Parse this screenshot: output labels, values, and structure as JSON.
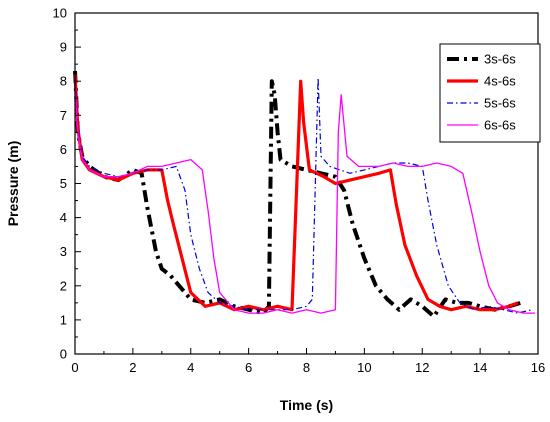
{
  "chart_data": {
    "type": "line",
    "xlabel": "Time (s)",
    "ylabel": "Pressure (m)",
    "xlim": [
      0,
      16
    ],
    "ylim": [
      0,
      10
    ],
    "xticks": [
      "0",
      "2",
      "4",
      "6",
      "8",
      "10",
      "12",
      "14",
      "16"
    ],
    "yticks": [
      "0",
      "1",
      "2",
      "3",
      "4",
      "5",
      "6",
      "7",
      "8",
      "9",
      "10"
    ],
    "grid": false,
    "legend_position": "top-right",
    "series": [
      {
        "name": "3s-6s",
        "color": "#000000",
        "style": "dash-dot-thick",
        "points": [
          [
            0.0,
            8.3
          ],
          [
            0.1,
            6.5
          ],
          [
            0.25,
            5.8
          ],
          [
            0.5,
            5.5
          ],
          [
            1.0,
            5.2
          ],
          [
            1.5,
            5.1
          ],
          [
            2.0,
            5.4
          ],
          [
            2.3,
            5.3
          ],
          [
            2.5,
            4.3
          ],
          [
            2.8,
            3.0
          ],
          [
            3.0,
            2.5
          ],
          [
            3.3,
            2.3
          ],
          [
            3.6,
            2.0
          ],
          [
            4.0,
            1.6
          ],
          [
            4.5,
            1.5
          ],
          [
            5.0,
            1.6
          ],
          [
            5.5,
            1.4
          ],
          [
            6.0,
            1.3
          ],
          [
            6.5,
            1.2
          ],
          [
            6.7,
            1.4
          ],
          [
            6.8,
            8.0
          ],
          [
            6.9,
            7.6
          ],
          [
            7.0,
            6.5
          ],
          [
            7.1,
            5.7
          ],
          [
            7.5,
            5.5
          ],
          [
            8.0,
            5.4
          ],
          [
            8.5,
            5.3
          ],
          [
            9.0,
            5.2
          ],
          [
            9.3,
            4.8
          ],
          [
            9.6,
            3.8
          ],
          [
            10.0,
            2.8
          ],
          [
            10.4,
            2.0
          ],
          [
            10.8,
            1.6
          ],
          [
            11.2,
            1.3
          ],
          [
            11.6,
            1.6
          ],
          [
            12.0,
            1.4
          ],
          [
            12.4,
            1.1
          ],
          [
            12.8,
            1.6
          ],
          [
            13.2,
            1.5
          ],
          [
            13.6,
            1.5
          ],
          [
            14.0,
            1.4
          ],
          [
            14.5,
            1.3
          ],
          [
            15.0,
            1.4
          ],
          [
            15.4,
            1.5
          ]
        ]
      },
      {
        "name": "4s-6s",
        "color": "#ff0000",
        "style": "solid-thick",
        "points": [
          [
            0.0,
            8.2
          ],
          [
            0.1,
            6.6
          ],
          [
            0.25,
            5.7
          ],
          [
            0.5,
            5.4
          ],
          [
            1.0,
            5.2
          ],
          [
            1.5,
            5.1
          ],
          [
            2.0,
            5.3
          ],
          [
            2.5,
            5.4
          ],
          [
            3.0,
            5.4
          ],
          [
            3.2,
            4.5
          ],
          [
            3.4,
            3.8
          ],
          [
            3.7,
            2.8
          ],
          [
            4.0,
            1.8
          ],
          [
            4.5,
            1.4
          ],
          [
            5.0,
            1.5
          ],
          [
            5.5,
            1.3
          ],
          [
            6.0,
            1.4
          ],
          [
            6.5,
            1.3
          ],
          [
            7.0,
            1.4
          ],
          [
            7.5,
            1.3
          ],
          [
            7.8,
            8.0
          ],
          [
            7.9,
            6.8
          ],
          [
            8.1,
            5.4
          ],
          [
            8.6,
            5.2
          ],
          [
            9.0,
            5.0
          ],
          [
            9.5,
            5.1
          ],
          [
            10.0,
            5.2
          ],
          [
            10.5,
            5.3
          ],
          [
            10.9,
            5.4
          ],
          [
            11.1,
            4.4
          ],
          [
            11.4,
            3.2
          ],
          [
            11.8,
            2.3
          ],
          [
            12.2,
            1.6
          ],
          [
            12.6,
            1.4
          ],
          [
            13.0,
            1.3
          ],
          [
            13.5,
            1.4
          ],
          [
            14.0,
            1.3
          ],
          [
            14.5,
            1.3
          ],
          [
            15.0,
            1.4
          ],
          [
            15.3,
            1.5
          ]
        ]
      },
      {
        "name": "5s-6s",
        "color": "#0000dd",
        "style": "dash-dot-thin",
        "points": [
          [
            0.0,
            8.1
          ],
          [
            0.1,
            6.6
          ],
          [
            0.25,
            5.8
          ],
          [
            0.5,
            5.5
          ],
          [
            1.0,
            5.3
          ],
          [
            1.5,
            5.2
          ],
          [
            2.0,
            5.3
          ],
          [
            2.5,
            5.4
          ],
          [
            3.0,
            5.4
          ],
          [
            3.5,
            5.5
          ],
          [
            3.8,
            4.8
          ],
          [
            4.0,
            3.5
          ],
          [
            4.3,
            2.5
          ],
          [
            4.6,
            1.8
          ],
          [
            5.0,
            1.5
          ],
          [
            5.5,
            1.4
          ],
          [
            6.0,
            1.3
          ],
          [
            6.5,
            1.3
          ],
          [
            7.0,
            1.3
          ],
          [
            7.5,
            1.3
          ],
          [
            8.0,
            1.4
          ],
          [
            8.2,
            1.6
          ],
          [
            8.4,
            8.1
          ],
          [
            8.5,
            5.8
          ],
          [
            8.8,
            5.5
          ],
          [
            9.5,
            5.3
          ],
          [
            10.0,
            5.4
          ],
          [
            10.5,
            5.5
          ],
          [
            11.0,
            5.6
          ],
          [
            11.5,
            5.6
          ],
          [
            12.0,
            5.5
          ],
          [
            12.2,
            4.5
          ],
          [
            12.5,
            3.2
          ],
          [
            12.9,
            2.0
          ],
          [
            13.3,
            1.5
          ],
          [
            13.8,
            1.3
          ],
          [
            14.3,
            1.4
          ],
          [
            14.8,
            1.3
          ],
          [
            15.3,
            1.2
          ],
          [
            15.8,
            1.3
          ]
        ]
      },
      {
        "name": "6s-6s",
        "color": "#ff00ff",
        "style": "solid-thin",
        "points": [
          [
            0.0,
            7.8
          ],
          [
            0.1,
            6.5
          ],
          [
            0.25,
            5.7
          ],
          [
            0.5,
            5.4
          ],
          [
            1.0,
            5.2
          ],
          [
            1.5,
            5.2
          ],
          [
            2.0,
            5.3
          ],
          [
            2.5,
            5.5
          ],
          [
            3.0,
            5.5
          ],
          [
            3.5,
            5.6
          ],
          [
            4.0,
            5.7
          ],
          [
            4.4,
            5.4
          ],
          [
            4.6,
            4.2
          ],
          [
            4.8,
            2.8
          ],
          [
            5.0,
            1.8
          ],
          [
            5.5,
            1.3
          ],
          [
            6.0,
            1.2
          ],
          [
            6.5,
            1.2
          ],
          [
            7.0,
            1.3
          ],
          [
            7.5,
            1.2
          ],
          [
            8.0,
            1.3
          ],
          [
            8.5,
            1.2
          ],
          [
            9.0,
            1.3
          ],
          [
            9.1,
            6.5
          ],
          [
            9.2,
            7.6
          ],
          [
            9.4,
            5.8
          ],
          [
            9.8,
            5.5
          ],
          [
            10.5,
            5.5
          ],
          [
            11.0,
            5.6
          ],
          [
            11.5,
            5.5
          ],
          [
            12.0,
            5.5
          ],
          [
            12.5,
            5.6
          ],
          [
            13.0,
            5.5
          ],
          [
            13.4,
            5.3
          ],
          [
            13.7,
            4.2
          ],
          [
            14.0,
            3.0
          ],
          [
            14.3,
            2.0
          ],
          [
            14.6,
            1.5
          ],
          [
            15.0,
            1.3
          ],
          [
            15.5,
            1.2
          ],
          [
            15.9,
            1.2
          ]
        ]
      }
    ]
  }
}
